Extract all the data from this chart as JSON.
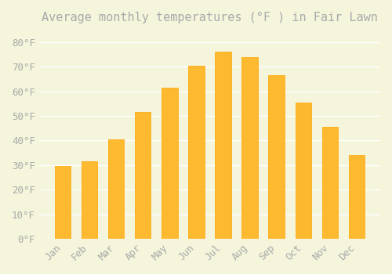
{
  "title": "Average monthly temperatures (°F ) in Fair Lawn",
  "months": [
    "Jan",
    "Feb",
    "Mar",
    "Apr",
    "May",
    "Jun",
    "Jul",
    "Aug",
    "Sep",
    "Oct",
    "Nov",
    "Dec"
  ],
  "values": [
    29.5,
    31.5,
    40.5,
    51.5,
    61.5,
    70.5,
    76.0,
    74.0,
    66.5,
    55.5,
    45.5,
    34.0
  ],
  "bar_color": "#FDB930",
  "bar_edge_color": "#FFA500",
  "background_color": "#F5F5DC",
  "grid_color": "#FFFFFF",
  "text_color": "#AAAAAA",
  "ylim": [
    0,
    85
  ],
  "yticks": [
    0,
    10,
    20,
    30,
    40,
    50,
    60,
    70,
    80
  ],
  "ytick_labels": [
    "0°F",
    "10°F",
    "20°F",
    "30°F",
    "40°F",
    "50°F",
    "60°F",
    "70°F",
    "80°F"
  ],
  "title_fontsize": 11,
  "tick_fontsize": 9,
  "font_family": "monospace"
}
